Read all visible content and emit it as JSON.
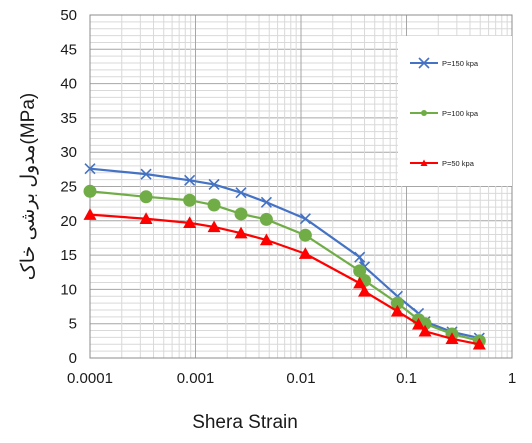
{
  "chart_data": {
    "type": "line",
    "title": "",
    "xlabel": "Shera Strain",
    "ylabel": "مدول برشی خاک(MPa)",
    "x_scale": "log",
    "xlim": [
      0.0001,
      1
    ],
    "ylim": [
      0,
      50
    ],
    "x_ticks": [
      "0.0001",
      "0.001",
      "0.01",
      "0.1",
      "1"
    ],
    "y_ticks": [
      "0",
      "5",
      "10",
      "15",
      "20",
      "25",
      "30",
      "35",
      "40",
      "45",
      "50"
    ],
    "grid": true,
    "legend_position": "top-right",
    "series": [
      {
        "name": "P=150 kpa",
        "color": "#4472C4",
        "marker": "x",
        "x": [
          0.0001,
          0.00034,
          0.00088,
          0.0015,
          0.0027,
          0.0047,
          0.011,
          0.036,
          0.04,
          0.082,
          0.13,
          0.15,
          0.27,
          0.49
        ],
        "y": [
          27.6,
          26.8,
          25.9,
          25.3,
          24.1,
          22.7,
          20.3,
          14.7,
          13.3,
          9.0,
          6.5,
          5.3,
          3.8,
          2.9
        ]
      },
      {
        "name": "P=100 kpa",
        "color": "#70AD47",
        "marker": "circle",
        "x": [
          0.0001,
          0.00034,
          0.00088,
          0.0015,
          0.0027,
          0.0047,
          0.011,
          0.036,
          0.04,
          0.082,
          0.13,
          0.15,
          0.27,
          0.49
        ],
        "y": [
          24.3,
          23.5,
          23.0,
          22.3,
          21.0,
          20.2,
          17.9,
          12.7,
          11.3,
          8.0,
          5.6,
          5.0,
          3.5,
          2.5
        ]
      },
      {
        "name": "P=50 kpa",
        "color": "#FF0000",
        "marker": "triangle",
        "x": [
          0.0001,
          0.00034,
          0.00088,
          0.0015,
          0.0027,
          0.0047,
          0.011,
          0.036,
          0.04,
          0.082,
          0.13,
          0.15,
          0.27,
          0.49
        ],
        "y": [
          20.9,
          20.3,
          19.7,
          19.1,
          18.2,
          17.2,
          15.2,
          10.9,
          9.7,
          6.8,
          4.9,
          3.9,
          2.8,
          2.0
        ]
      }
    ]
  }
}
